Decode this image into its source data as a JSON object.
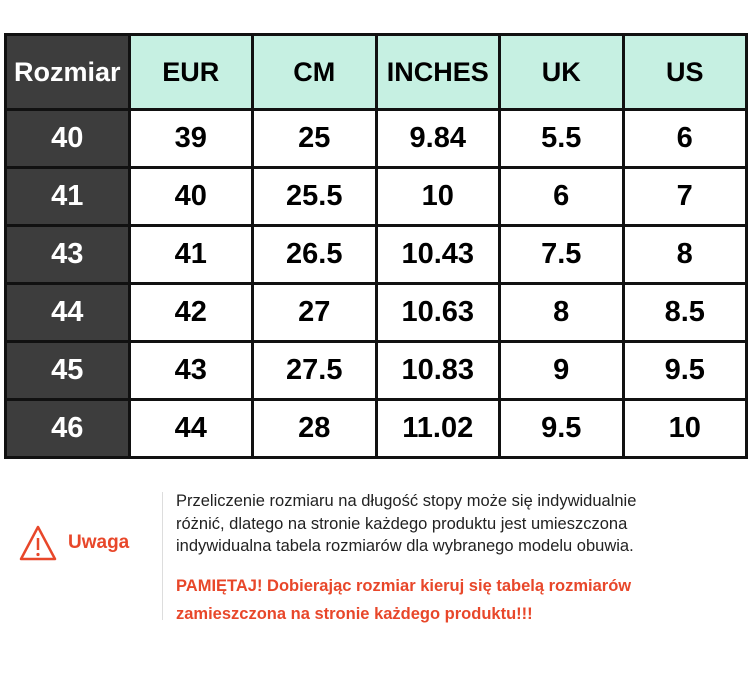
{
  "table": {
    "headers": [
      "Rozmiar",
      "EUR",
      "CM",
      "INCHES",
      "UK",
      "US"
    ],
    "rows": [
      [
        "40",
        "39",
        "25",
        "9.84",
        "5.5",
        "6"
      ],
      [
        "41",
        "40",
        "25.5",
        "10",
        "6",
        "7"
      ],
      [
        "43",
        "41",
        "26.5",
        "10.43",
        "7.5",
        "8"
      ],
      [
        "44",
        "42",
        "27",
        "10.63",
        "8",
        "8.5"
      ],
      [
        "45",
        "43",
        "27.5",
        "10.83",
        "9",
        "9.5"
      ],
      [
        "46",
        "44",
        "28",
        "11.02",
        "9.5",
        "10"
      ]
    ]
  },
  "warning": {
    "icon": "warning-triangle-icon",
    "label": "Uwaga",
    "note_lines": [
      "Przeliczenie rozmiaru na długość stopy może się indywidualnie",
      "różnić, dlatego na stronie każdego produktu jest umieszczona",
      "indywidualna tabela rozmiarów dla wybranego modelu obuwia."
    ],
    "remember_lines": [
      "PAMIĘTAJ! Dobierając rozmiar kieruj się tabelą rozmiarów",
      "zamieszczona na stronie każdego produktu!!!"
    ]
  },
  "colors": {
    "header_dark": "#3d3d3d",
    "header_mint": "#c6f0e2",
    "accent_red": "#e8472a"
  }
}
